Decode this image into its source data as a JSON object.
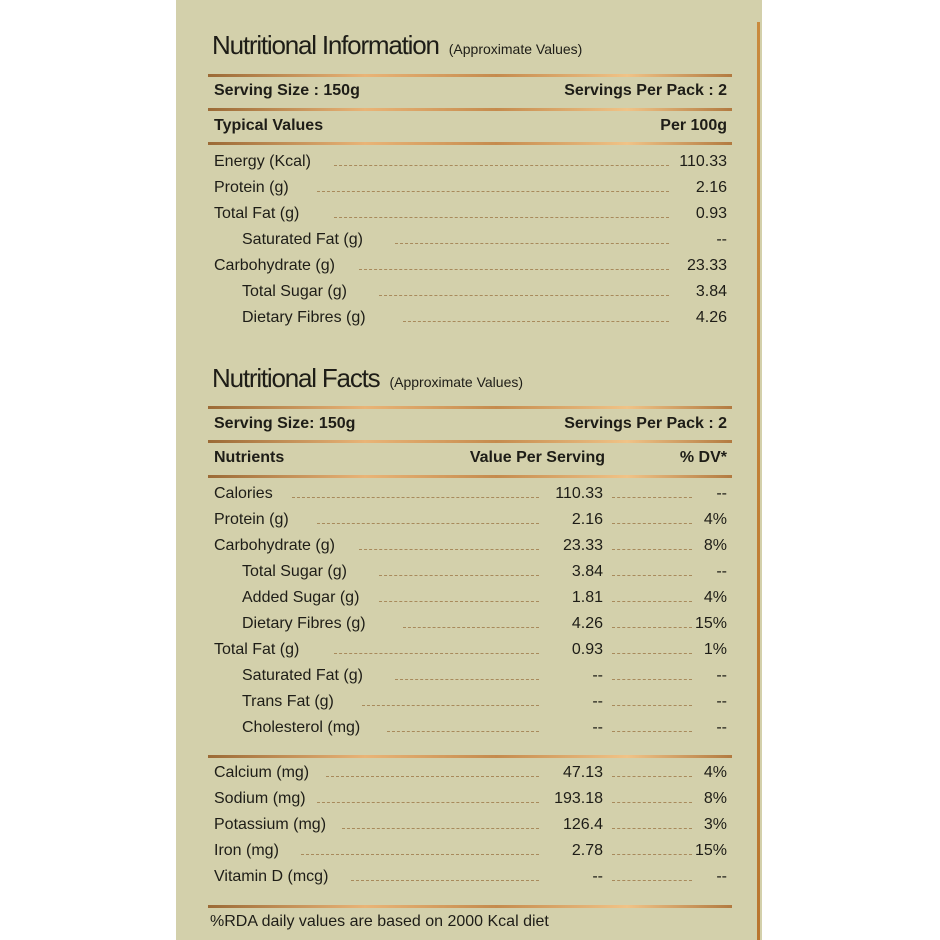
{
  "info": {
    "title": "Nutritional Information",
    "subtitle": "(Approximate Values)",
    "serving_size": "Serving Size : 150g",
    "servings_per_pack": "Servings Per Pack : 2",
    "col_label": "Typical Values",
    "col_value": "Per 100g",
    "rows": [
      {
        "label": "Energy (Kcal)",
        "value": "110.33",
        "indent": false
      },
      {
        "label": "Protein (g)",
        "value": "2.16",
        "indent": false
      },
      {
        "label": "Total Fat (g)",
        "value": "0.93",
        "indent": false
      },
      {
        "label": "Saturated Fat (g)",
        "value": "--",
        "indent": true
      },
      {
        "label": "Carbohydrate (g)",
        "value": "23.33",
        "indent": false
      },
      {
        "label": "Total Sugar (g)",
        "value": "3.84",
        "indent": true
      },
      {
        "label": "Dietary Fibres (g)",
        "value": "4.26",
        "indent": true
      }
    ]
  },
  "facts": {
    "title": "Nutritional Facts",
    "subtitle": "(Approximate Values)",
    "serving_size": "Serving Size: 150g",
    "servings_per_pack": "Servings Per Pack : 2",
    "col_nutrients": "Nutrients",
    "col_value": "Value Per Serving",
    "col_dv": "% DV*",
    "rows": [
      {
        "label": "Calories",
        "value": "110.33",
        "dv": "--",
        "indent": false
      },
      {
        "label": "Protein (g)",
        "value": "2.16",
        "dv": "4%",
        "indent": false
      },
      {
        "label": "Carbohydrate (g)",
        "value": "23.33",
        "dv": "8%",
        "indent": false
      },
      {
        "label": "Total Sugar (g)",
        "value": "3.84",
        "dv": "--",
        "indent": true
      },
      {
        "label": "Added Sugar (g)",
        "value": "1.81",
        "dv": "4%",
        "indent": true
      },
      {
        "label": "Dietary Fibres (g)",
        "value": "4.26",
        "dv": "15%",
        "indent": true
      },
      {
        "label": "Total Fat (g)",
        "value": "0.93",
        "dv": "1%",
        "indent": false
      },
      {
        "label": "Saturated Fat (g)",
        "value": "--",
        "dv": "--",
        "indent": true
      },
      {
        "label": "Trans Fat (g)",
        "value": "--",
        "dv": "--",
        "indent": true
      },
      {
        "label": "Cholesterol (mg)",
        "value": "--",
        "dv": "--",
        "indent": true
      }
    ],
    "minerals": [
      {
        "label": "Calcium (mg)",
        "value": "47.13",
        "dv": "4%",
        "indent": false
      },
      {
        "label": "Sodium (mg)",
        "value": "193.18",
        "dv": "8%",
        "indent": false
      },
      {
        "label": "Potassium (mg)",
        "value": "126.4",
        "dv": "3%",
        "indent": false
      },
      {
        "label": "Iron (mg)",
        "value": "2.78",
        "dv": "15%",
        "indent": false
      },
      {
        "label": "Vitamin D (mcg)",
        "value": "--",
        "dv": "--",
        "indent": false
      }
    ],
    "footnote": "%RDA daily values are based on 2000 Kcal diet"
  }
}
